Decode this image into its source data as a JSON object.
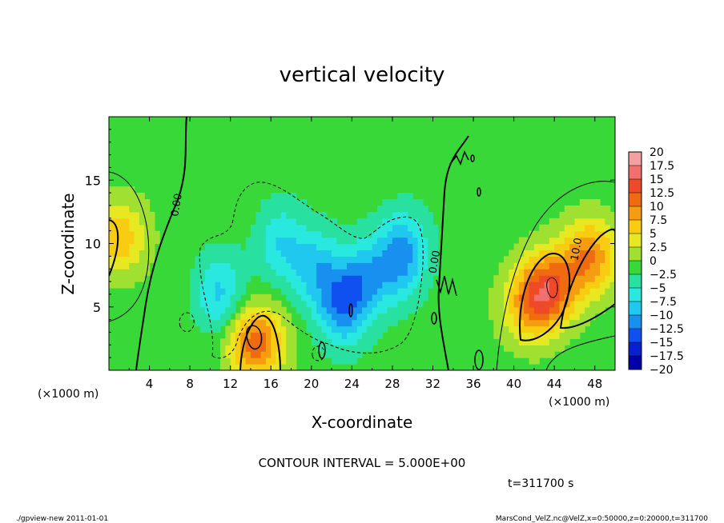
{
  "chart_data": {
    "type": "heatmap",
    "title": "vertical velocity",
    "xlabel": "X-coordinate",
    "ylabel": "Z-coordinate",
    "x_unit_left": "(×1000 m)",
    "x_unit_right": "(×1000 m)",
    "xlim": [
      0,
      50
    ],
    "ylim": [
      0,
      20
    ],
    "x_ticks": [
      "4",
      "8",
      "12",
      "16",
      "20",
      "24",
      "28",
      "32",
      "36",
      "40",
      "44",
      "48"
    ],
    "x_tick_values": [
      4,
      8,
      12,
      16,
      20,
      24,
      28,
      32,
      36,
      40,
      44,
      48
    ],
    "y_ticks": [
      "5",
      "10",
      "15"
    ],
    "y_tick_values": [
      5,
      10,
      15
    ],
    "contour_interval_text": "CONTOUR INTERVAL = 5.000E+00",
    "time_text": "t=311700 s",
    "contour_labels": [
      {
        "text": "0.00",
        "x": 7.0,
        "y": 13.0
      },
      {
        "text": "0.00",
        "x": 32.5,
        "y": 8.5
      },
      {
        "text": "10.0",
        "x": 46.5,
        "y": 9.5
      }
    ],
    "colorbar": {
      "levels": [
        "20",
        "17.5",
        "15",
        "12.5",
        "10",
        "7.5",
        "5",
        "2.5",
        "0",
        "−2.5",
        "−5",
        "−7.5",
        "−10",
        "−12.5",
        "−15",
        "−17.5",
        "−20"
      ],
      "colors": [
        "#f4a0a0",
        "#f07070",
        "#ee4a2a",
        "#f06a10",
        "#f59c10",
        "#f8cc10",
        "#e8e820",
        "#a0e030",
        "#38d838",
        "#28e0a0",
        "#28e8e0",
        "#20c8f0",
        "#1890f0",
        "#1050f0",
        "#0820d0",
        "#0000a8",
        "#7010c0"
      ]
    },
    "features": [
      {
        "x": 14.5,
        "z": 2.2,
        "w": 13
      },
      {
        "x": 1.0,
        "z": 10.5,
        "w": 8
      },
      {
        "x": 43.5,
        "z": 6.5,
        "w": 12
      },
      {
        "x": 47.5,
        "z": 9.0,
        "w": 11
      },
      {
        "x": 41.5,
        "z": 5.0,
        "w": 8
      },
      {
        "x": 11.0,
        "z": 6.0,
        "w": -7
      },
      {
        "x": 17.0,
        "z": 10.0,
        "w": -6
      },
      {
        "x": 20.5,
        "z": 8.0,
        "w": -7
      },
      {
        "x": 23.0,
        "z": 5.0,
        "w": -9
      },
      {
        "x": 25.0,
        "z": 7.0,
        "w": -7
      },
      {
        "x": 28.0,
        "z": 8.5,
        "w": -6
      },
      {
        "x": 29.5,
        "z": 9.5,
        "w": -6
      }
    ]
  },
  "footer": {
    "left": "./gpview-new   2011-01-01",
    "right": "MarsCond_VelZ.nc@VelZ,x=0:50000,z=0:20000,t=311700"
  }
}
